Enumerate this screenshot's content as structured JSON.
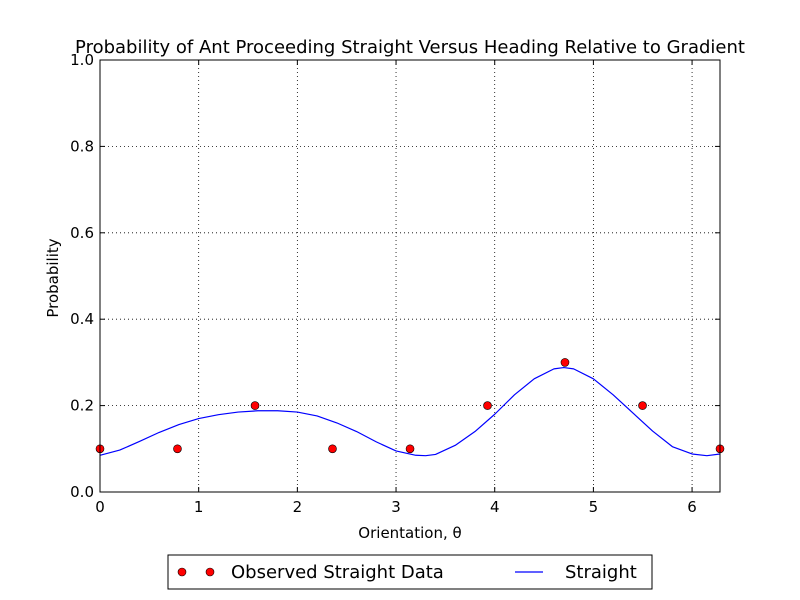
{
  "chart_data": {
    "type": "scatter",
    "title": "Probability of Ant Proceeding Straight Versus Heading Relative to Gradient",
    "xlabel": "Orientation, θ",
    "ylabel": "Probability",
    "xlim": [
      0,
      6.283
    ],
    "ylim": [
      0,
      1.0
    ],
    "xticks": [
      0,
      1,
      2,
      3,
      4,
      5,
      6
    ],
    "xtick_labels": [
      "0",
      "1",
      "2",
      "3",
      "4",
      "5",
      "6"
    ],
    "yticks": [
      0.0,
      0.2,
      0.4,
      0.6,
      0.8,
      1.0
    ],
    "ytick_labels": [
      "0.0",
      "0.2",
      "0.4",
      "0.6",
      "0.8",
      "1.0"
    ],
    "grid": true,
    "legend_position": "bottom-center-outside",
    "series": [
      {
        "name": "Observed Straight Data",
        "kind": "markers",
        "color": "#ff0000",
        "x": [
          0,
          0.785,
          1.571,
          2.356,
          3.142,
          3.927,
          4.712,
          5.498,
          6.283
        ],
        "y": [
          0.1,
          0.1,
          0.2,
          0.1,
          0.1,
          0.2,
          0.3,
          0.2,
          0.1
        ]
      },
      {
        "name": "Straight",
        "kind": "line",
        "color": "#0000ff",
        "x": [
          0,
          0.2,
          0.4,
          0.6,
          0.8,
          1.0,
          1.2,
          1.4,
          1.6,
          1.8,
          2.0,
          2.2,
          2.4,
          2.6,
          2.8,
          3.0,
          3.2,
          3.3,
          3.4,
          3.6,
          3.8,
          4.0,
          4.2,
          4.4,
          4.6,
          4.7,
          4.8,
          5.0,
          5.2,
          5.4,
          5.6,
          5.8,
          6.0,
          6.15,
          6.283
        ],
        "y": [
          0.085,
          0.097,
          0.117,
          0.138,
          0.156,
          0.17,
          0.179,
          0.185,
          0.188,
          0.188,
          0.185,
          0.176,
          0.16,
          0.14,
          0.116,
          0.095,
          0.085,
          0.084,
          0.087,
          0.108,
          0.14,
          0.18,
          0.225,
          0.262,
          0.285,
          0.288,
          0.285,
          0.262,
          0.225,
          0.183,
          0.141,
          0.105,
          0.088,
          0.084,
          0.088
        ]
      }
    ]
  }
}
